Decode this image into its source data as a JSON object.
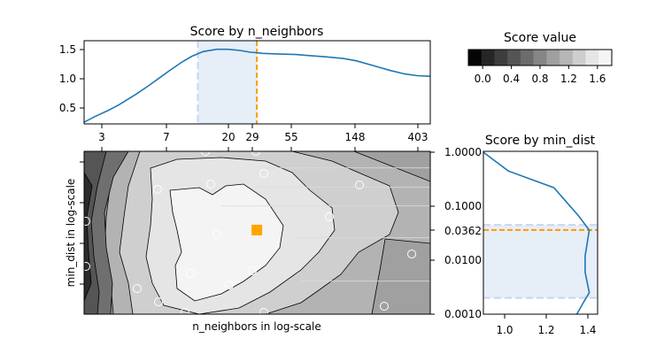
{
  "chart_data": [
    {
      "id": "top",
      "type": "line",
      "title": "Score by n_neighbors",
      "xscale": "log",
      "xlim": [
        1.7,
        500
      ],
      "ylim": [
        0.25,
        1.7
      ],
      "x_tick_labels": [
        "3",
        "7",
        "20",
        "29",
        "55",
        "148",
        "403"
      ],
      "y_tick_labels": [
        "0.5",
        "1.0",
        "1.5"
      ],
      "series": [
        {
          "x": [
            1.7,
            2.0,
            2.5,
            3.0,
            4.0,
            5.0,
            6.0,
            7.0,
            8.5,
            10.0,
            12.0,
            15.0,
            18.0,
            22.0,
            26.0,
            29.0,
            32.0,
            40.0,
            55.0,
            70.0,
            90.0,
            120.0,
            148.0,
            200.0,
            260.0,
            330.0,
            403.0,
            500.0
          ],
          "y": [
            0.28,
            0.37,
            0.48,
            0.58,
            0.77,
            0.93,
            1.07,
            1.19,
            1.33,
            1.43,
            1.51,
            1.55,
            1.55,
            1.53,
            1.5,
            1.49,
            1.48,
            1.47,
            1.46,
            1.44,
            1.42,
            1.39,
            1.35,
            1.26,
            1.18,
            1.12,
            1.09,
            1.08
          ]
        }
      ],
      "selected_range": [
        11,
        29
      ],
      "marker_x": 29
    },
    {
      "id": "colorbar",
      "type": "colorbar",
      "title": "Score value",
      "tick_labels": [
        "0.0",
        "0.4",
        "0.8",
        "1.2",
        "1.6"
      ],
      "ticks": [
        0.0,
        0.4,
        0.8,
        1.2,
        1.6
      ],
      "range": [
        -0.2,
        1.8
      ],
      "colors": [
        "#050505",
        "#262626",
        "#3d3d3d",
        "#555555",
        "#6c6c6c",
        "#858585",
        "#9f9f9f",
        "#b6b6b6",
        "#cecece",
        "#e6e6e6",
        "#f4f4f4"
      ]
    },
    {
      "id": "main",
      "type": "heatmap",
      "xlabel": "n_neighbors in log-scale",
      "ylabel": "min_dist in log-scale",
      "y_tick_labels": [
        "1.0000",
        "0.1000",
        "0.0362",
        "0.0100",
        "0.0010"
      ],
      "best_point": {
        "n_neighbors": 29,
        "min_dist": 0.0362
      }
    },
    {
      "id": "right",
      "type": "line",
      "title": "Score by min_dist",
      "xlim": [
        0.9,
        1.45
      ],
      "x_tick_labels": [
        "1.0",
        "1.2",
        "1.4"
      ],
      "yscale": "log",
      "ylim": [
        0.001,
        1.0
      ],
      "y_tick_labels": [
        "1.0000",
        "0.1000",
        "0.0362",
        "0.0100",
        "0.0010"
      ],
      "series": [
        {
          "x": [
            0.9,
            1.02,
            1.24,
            1.36,
            1.41,
            1.39,
            1.39,
            1.41,
            1.38,
            1.35
          ],
          "y": [
            1.0,
            0.45,
            0.22,
            0.065,
            0.036,
            0.012,
            0.006,
            0.0025,
            0.0016,
            0.001
          ]
        }
      ],
      "selected_range": [
        0.002,
        0.045
      ],
      "marker_y": 0.0362
    }
  ]
}
